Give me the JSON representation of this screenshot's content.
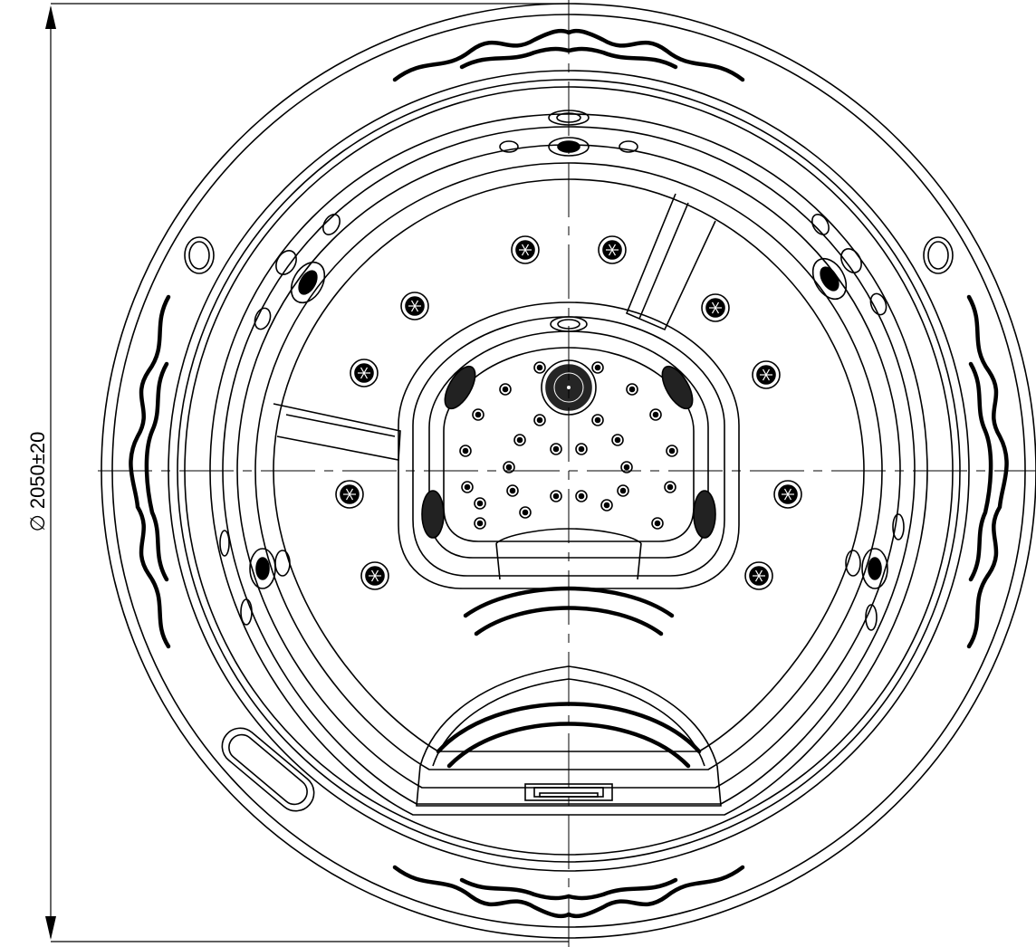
{
  "dimension": {
    "symbol": "∅",
    "value": "2050",
    "tolerance": "±20"
  },
  "colors": {
    "stroke": "#000000",
    "background": "#ffffff"
  }
}
